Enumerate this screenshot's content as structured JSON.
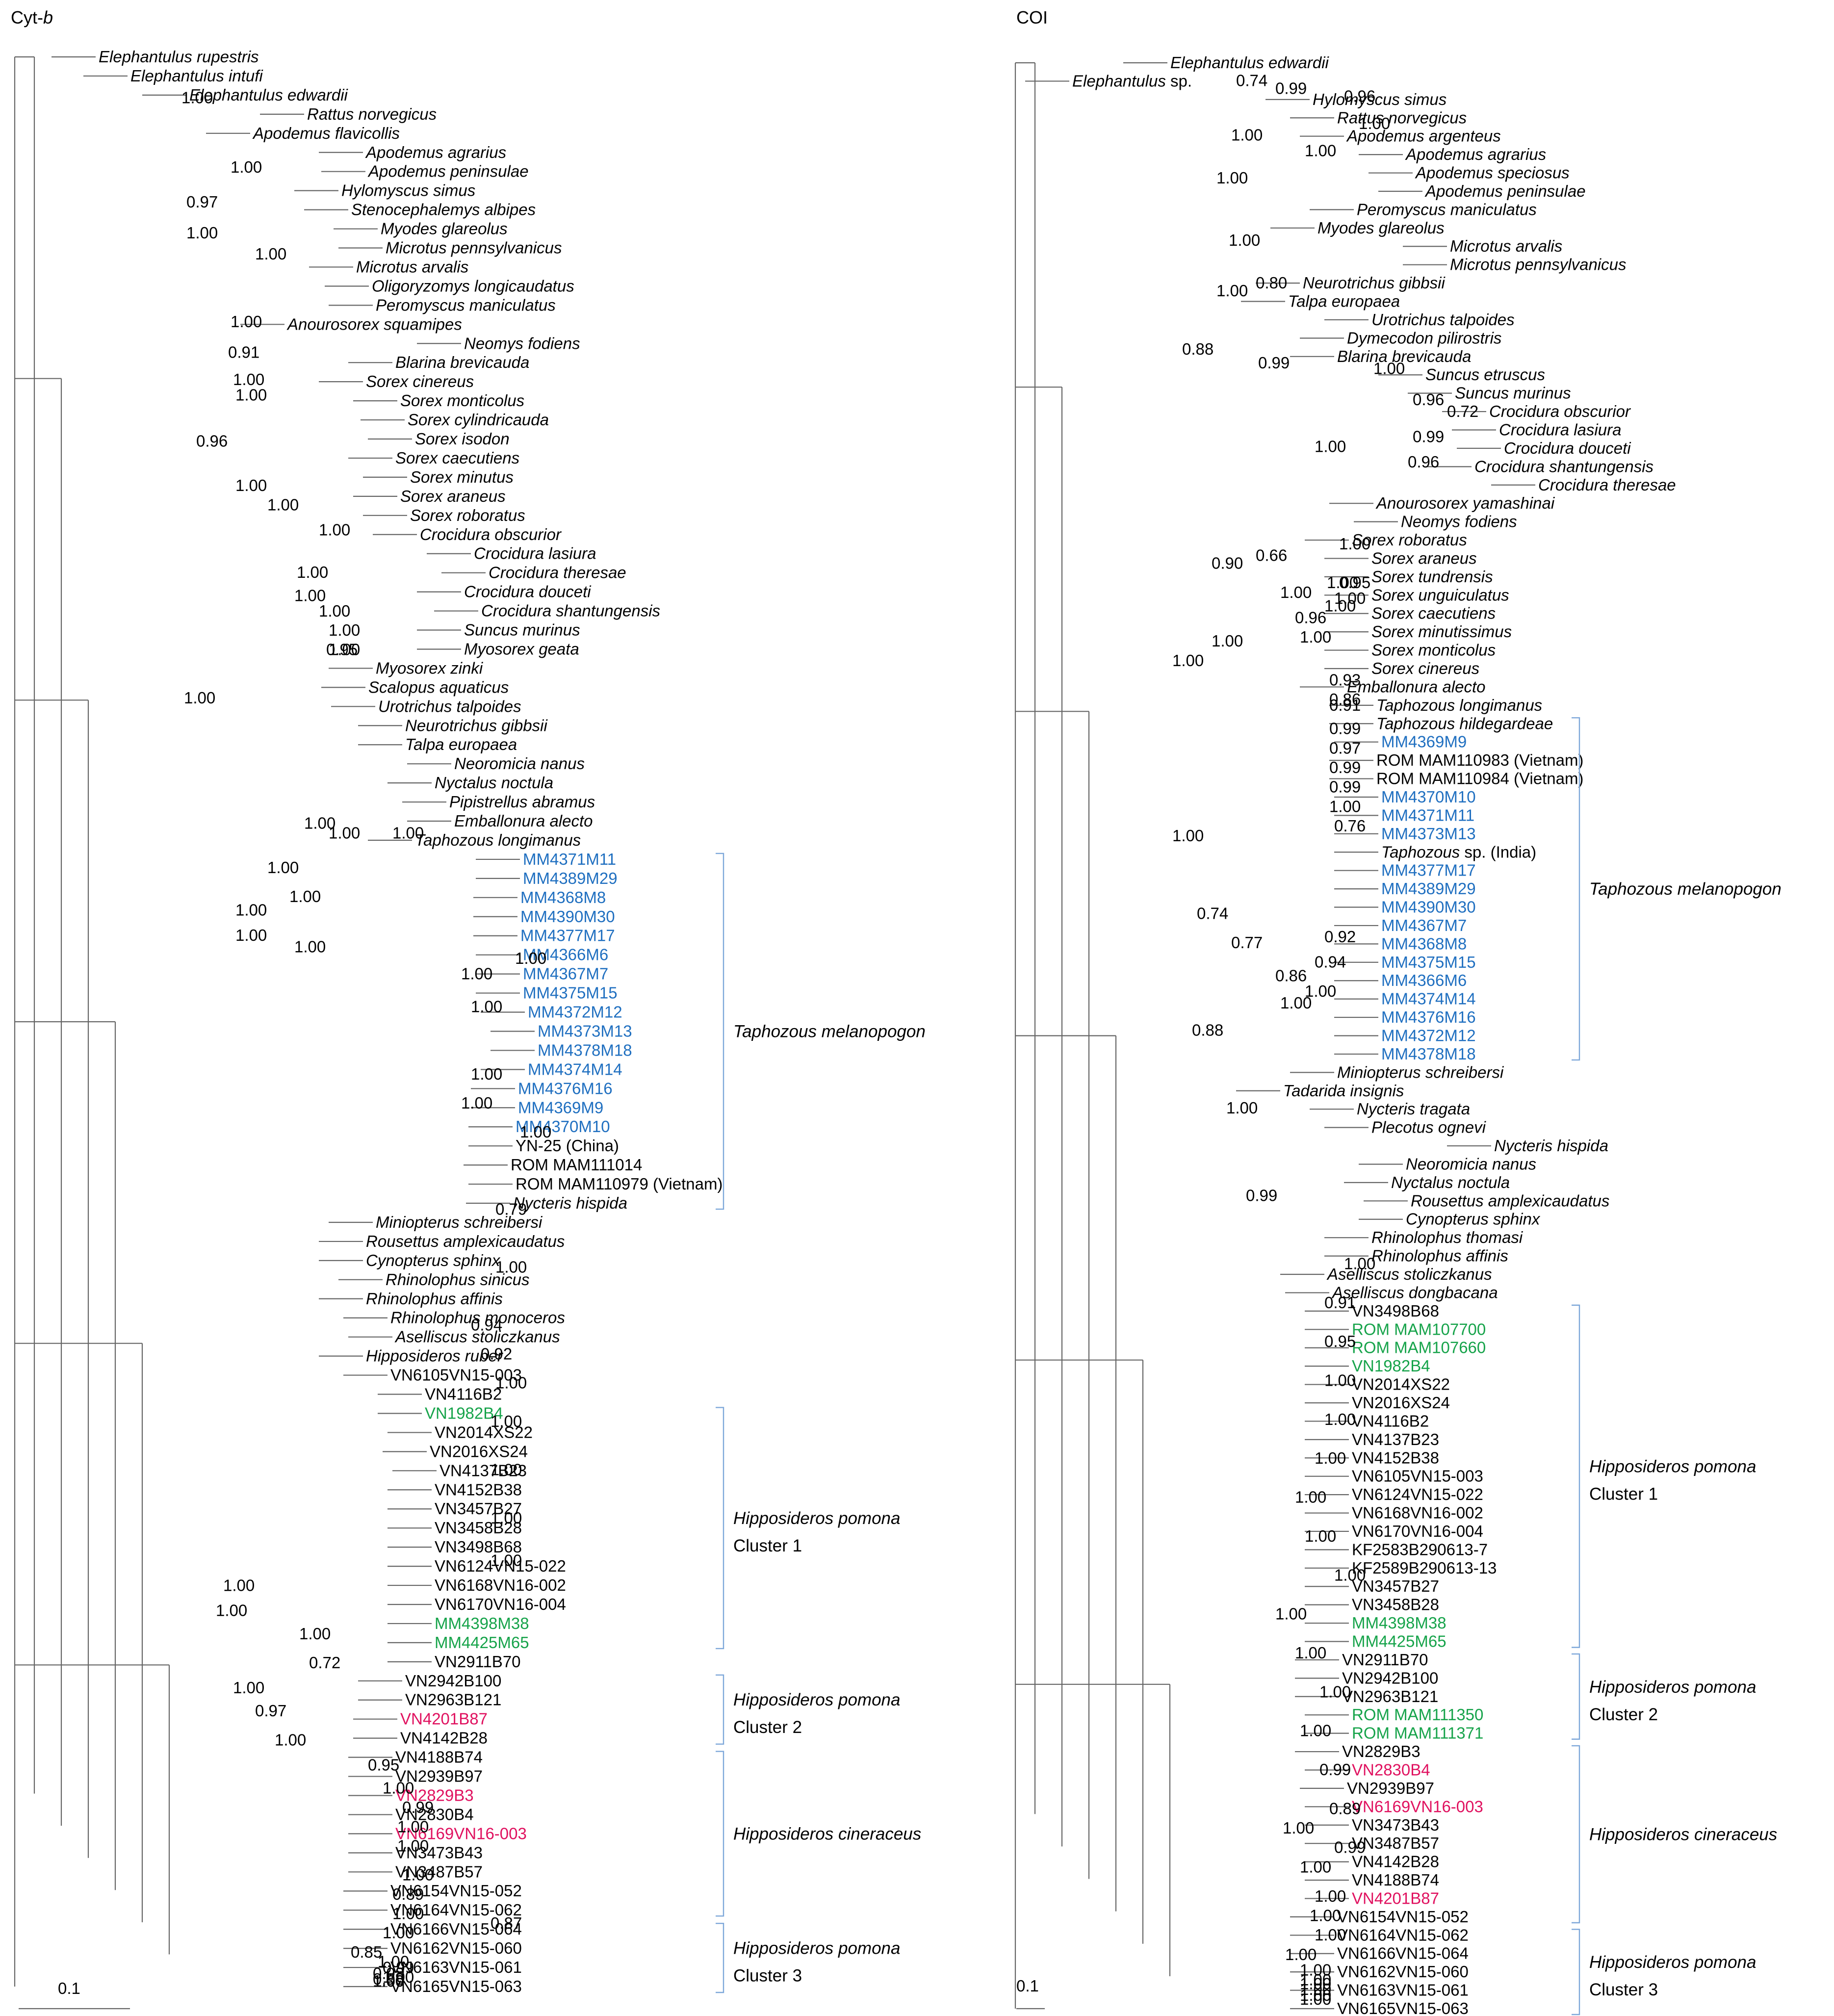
{
  "colors": {
    "text": "#000000",
    "blue": "#1f6fc0",
    "green": "#16a34a",
    "pink": "#e0115f",
    "branch": "#666666",
    "bracket": "#7da7d9"
  },
  "panels": [
    {
      "title_main": "Cyt-",
      "title_italic": "b",
      "scale_label": "0.1",
      "taxa": [
        {
          "label": "Elephantulus rupestris",
          "italic": true
        },
        {
          "label": "Elephantulus intufi",
          "italic": true
        },
        {
          "label": "Elephantulus edwardii",
          "italic": true
        },
        {
          "label": "Rattus norvegicus",
          "italic": true
        },
        {
          "label": "Apodemus flavicollis",
          "italic": true
        },
        {
          "label": "Apodemus agrarius",
          "italic": true
        },
        {
          "label": "Apodemus peninsulae",
          "italic": true
        },
        {
          "label": "Hylomyscus simus",
          "italic": true
        },
        {
          "label": "Stenocephalemys albipes",
          "italic": true
        },
        {
          "label": "Myodes glareolus",
          "italic": true
        },
        {
          "label": "Microtus pennsylvanicus",
          "italic": true
        },
        {
          "label": "Microtus arvalis",
          "italic": true
        },
        {
          "label": "Oligoryzomys longicaudatus",
          "italic": true
        },
        {
          "label": "Peromyscus maniculatus",
          "italic": true
        },
        {
          "label": "Anourosorex squamipes",
          "italic": true
        },
        {
          "label": "Neomys fodiens",
          "italic": true
        },
        {
          "label": "Blarina brevicauda",
          "italic": true
        },
        {
          "label": "Sorex cinereus",
          "italic": true
        },
        {
          "label": "Sorex monticolus",
          "italic": true
        },
        {
          "label": "Sorex cylindricauda",
          "italic": true
        },
        {
          "label": "Sorex isodon",
          "italic": true
        },
        {
          "label": "Sorex caecutiens",
          "italic": true
        },
        {
          "label": "Sorex minutus",
          "italic": true
        },
        {
          "label": "Sorex araneus",
          "italic": true
        },
        {
          "label": "Sorex roboratus",
          "italic": true
        },
        {
          "label": "Crocidura obscurior",
          "italic": true
        },
        {
          "label": "Crocidura lasiura",
          "italic": true
        },
        {
          "label": "Crocidura theresae",
          "italic": true
        },
        {
          "label": "Crocidura douceti",
          "italic": true
        },
        {
          "label": "Crocidura shantungensis",
          "italic": true
        },
        {
          "label": "Suncus murinus",
          "italic": true
        },
        {
          "label": "Myosorex geata",
          "italic": true
        },
        {
          "label": "Myosorex zinki",
          "italic": true
        },
        {
          "label": "Scalopus aquaticus",
          "italic": true
        },
        {
          "label": "Urotrichus talpoides",
          "italic": true
        },
        {
          "label": "Neurotrichus gibbsii",
          "italic": true
        },
        {
          "label": "Talpa europaea",
          "italic": true
        },
        {
          "label": "Neoromicia nanus",
          "italic": true
        },
        {
          "label": "Nyctalus noctula",
          "italic": true
        },
        {
          "label": "Pipistrellus abramus",
          "italic": true
        },
        {
          "label": "Emballonura alecto",
          "italic": true
        },
        {
          "label": "Taphozous longimanus",
          "italic": true
        },
        {
          "label": "MM4371M11",
          "color": "blue"
        },
        {
          "label": "MM4389M29",
          "color": "blue"
        },
        {
          "label": "MM4368M8",
          "color": "blue"
        },
        {
          "label": "MM4390M30",
          "color": "blue"
        },
        {
          "label": "MM4377M17",
          "color": "blue"
        },
        {
          "label": "MM4366M6",
          "color": "blue"
        },
        {
          "label": "MM4367M7",
          "color": "blue"
        },
        {
          "label": "MM4375M15",
          "color": "blue"
        },
        {
          "label": "MM4372M12",
          "color": "blue"
        },
        {
          "label": "MM4373M13",
          "color": "blue"
        },
        {
          "label": "MM4378M18",
          "color": "blue"
        },
        {
          "label": "MM4374M14",
          "color": "blue"
        },
        {
          "label": "MM4376M16",
          "color": "blue"
        },
        {
          "label": "MM4369M9",
          "color": "blue"
        },
        {
          "label": "MM4370M10",
          "color": "blue"
        },
        {
          "label": "YN-25 (China)"
        },
        {
          "label": "ROM MAM111014"
        },
        {
          "label": "ROM MAM110979 (Vietnam)"
        },
        {
          "label": "Nycteris hispida",
          "italic": true
        },
        {
          "label": "Miniopterus schreibersi",
          "italic": true
        },
        {
          "label": "Rousettus amplexicaudatus",
          "italic": true
        },
        {
          "label": "Cynopterus sphinx",
          "italic": true
        },
        {
          "label": "Rhinolophus sinicus",
          "italic": true
        },
        {
          "label": "Rhinolophus affinis",
          "italic": true
        },
        {
          "label": "Rhinolophus monoceros",
          "italic": true
        },
        {
          "label": "Aselliscus stoliczkanus",
          "italic": true
        },
        {
          "label": "Hipposideros ruber",
          "italic": true
        },
        {
          "label": "VN6105VN15-003"
        },
        {
          "label": "VN4116B2"
        },
        {
          "label": "VN1982B4",
          "color": "green"
        },
        {
          "label": "VN2014XS22"
        },
        {
          "label": "VN2016XS24"
        },
        {
          "label": "VN4137B23"
        },
        {
          "label": "VN4152B38"
        },
        {
          "label": "VN3457B27"
        },
        {
          "label": "VN3458B28"
        },
        {
          "label": "VN3498B68"
        },
        {
          "label": "VN6124VN15-022"
        },
        {
          "label": "VN6168VN16-002"
        },
        {
          "label": "VN6170VN16-004"
        },
        {
          "label": "MM4398M38",
          "color": "green"
        },
        {
          "label": "MM4425M65",
          "color": "green"
        },
        {
          "label": "VN2911B70"
        },
        {
          "label": "VN2942B100"
        },
        {
          "label": "VN2963B121"
        },
        {
          "label": "VN4201B87",
          "color": "pink"
        },
        {
          "label": "VN4142B28"
        },
        {
          "label": "VN4188B74"
        },
        {
          "label": "VN2939B97"
        },
        {
          "label": "VN2829B3",
          "color": "pink"
        },
        {
          "label": "VN2830B4"
        },
        {
          "label": "VN6169VN16-003",
          "color": "pink"
        },
        {
          "label": "VN3473B43"
        },
        {
          "label": "VN3487B57"
        },
        {
          "label": "VN6154VN15-052"
        },
        {
          "label": "VN6164VN15-062"
        },
        {
          "label": "VN6166VN15-064"
        },
        {
          "label": "VN6162VN15-060"
        },
        {
          "label": "VN6163VN15-061"
        },
        {
          "label": "VN6165VN15-063"
        }
      ],
      "supports": [
        "1.00",
        "1.00",
        "0.97",
        "1.00",
        "1.00",
        "1.00",
        "1.00",
        "0.91",
        "1.00",
        "0.96",
        "1.00",
        "1.00",
        "1.00",
        "1.00",
        "1.00",
        "1.00",
        "1.00",
        "1.00",
        "1.00",
        "0.95",
        "1.00",
        "1.00",
        "1.00",
        "1.00",
        "1.00",
        "1.00",
        "1.00",
        "1.00",
        "1.00",
        "1.00",
        "1.00",
        "1.00",
        "1.00",
        "1.00",
        "0.79",
        "1.00",
        "0.94",
        "0.92",
        "1.00",
        "1.00",
        "1.00",
        "1.00",
        "1.00",
        "1.00",
        "1.00",
        "1.00",
        "0.72",
        "1.00",
        "0.97",
        "1.00",
        "0.95",
        "1.00",
        "0.99",
        "1.00",
        "1.00",
        "1.00",
        "0.89",
        "1.00",
        "1.00",
        "0.85",
        "1.00",
        "0.99",
        "0.98",
        "1.00",
        "0.98",
        "1.00",
        "1.00",
        "1.00",
        "1.00",
        "1.00",
        "0.87"
      ],
      "groups": [
        {
          "name": "Taphozous melanopogon",
          "cluster": ""
        },
        {
          "name": "Hipposideros pomona",
          "cluster": "Cluster 1"
        },
        {
          "name": "Hipposideros pomona",
          "cluster": "Cluster 2"
        },
        {
          "name": "Hipposideros cineraceus",
          "cluster": ""
        },
        {
          "name": "Hipposideros pomona",
          "cluster": "Cluster 3"
        }
      ]
    },
    {
      "title_main": "COI",
      "title_italic": "",
      "scale_label": "0.1",
      "taxa": [
        {
          "label": "Elephantulus edwardii",
          "italic": true
        },
        {
          "label": "Elephantulus",
          "italic": true,
          "suffix": " sp."
        },
        {
          "label": "Hylomyscus simus",
          "italic": true
        },
        {
          "label": "Rattus norvegicus",
          "italic": true
        },
        {
          "label": "Apodemus argenteus",
          "italic": true
        },
        {
          "label": "Apodemus agrarius",
          "italic": true
        },
        {
          "label": "Apodemus speciosus",
          "italic": true
        },
        {
          "label": "Apodemus peninsulae",
          "italic": true
        },
        {
          "label": "Peromyscus maniculatus",
          "italic": true
        },
        {
          "label": "Myodes glareolus",
          "italic": true
        },
        {
          "label": "Microtus arvalis",
          "italic": true
        },
        {
          "label": "Microtus pennsylvanicus",
          "italic": true
        },
        {
          "label": "Neurotrichus gibbsii",
          "italic": true
        },
        {
          "label": "Talpa europaea",
          "italic": true
        },
        {
          "label": "Urotrichus talpoides",
          "italic": true
        },
        {
          "label": "Dymecodon pilirostris",
          "italic": true
        },
        {
          "label": "Blarina brevicauda",
          "italic": true
        },
        {
          "label": "Suncus etruscus",
          "italic": true
        },
        {
          "label": "Suncus murinus",
          "italic": true
        },
        {
          "label": "Crocidura obscurior",
          "italic": true
        },
        {
          "label": "Crocidura lasiura",
          "italic": true
        },
        {
          "label": "Crocidura douceti",
          "italic": true
        },
        {
          "label": "Crocidura shantungensis",
          "italic": true
        },
        {
          "label": "Crocidura theresae",
          "italic": true
        },
        {
          "label": "Anourosorex yamashinai",
          "italic": true
        },
        {
          "label": "Neomys fodiens",
          "italic": true
        },
        {
          "label": "Sorex roboratus",
          "italic": true
        },
        {
          "label": "Sorex araneus",
          "italic": true
        },
        {
          "label": "Sorex tundrensis",
          "italic": true
        },
        {
          "label": "Sorex unguiculatus",
          "italic": true
        },
        {
          "label": "Sorex caecutiens",
          "italic": true
        },
        {
          "label": "Sorex minutissimus",
          "italic": true
        },
        {
          "label": "Sorex monticolus",
          "italic": true
        },
        {
          "label": "Sorex cinereus",
          "italic": true
        },
        {
          "label": "Emballonura alecto",
          "italic": true
        },
        {
          "label": "Taphozous longimanus",
          "italic": true
        },
        {
          "label": "Taphozous hildegardeae",
          "italic": true
        },
        {
          "label": "MM4369M9",
          "color": "blue"
        },
        {
          "label": "ROM MAM110983 (Vietnam)"
        },
        {
          "label": "ROM MAM110984 (Vietnam)"
        },
        {
          "label": "MM4370M10",
          "color": "blue"
        },
        {
          "label": "MM4371M11",
          "color": "blue"
        },
        {
          "label": "MM4373M13",
          "color": "blue"
        },
        {
          "label": "Taphozous",
          "italic": true,
          "suffix": " sp. (India)"
        },
        {
          "label": "MM4377M17",
          "color": "blue"
        },
        {
          "label": "MM4389M29",
          "color": "blue"
        },
        {
          "label": "MM4390M30",
          "color": "blue"
        },
        {
          "label": "MM4367M7",
          "color": "blue"
        },
        {
          "label": "MM4368M8",
          "color": "blue"
        },
        {
          "label": "MM4375M15",
          "color": "blue"
        },
        {
          "label": "MM4366M6",
          "color": "blue"
        },
        {
          "label": "MM4374M14",
          "color": "blue"
        },
        {
          "label": "MM4376M16",
          "color": "blue"
        },
        {
          "label": "MM4372M12",
          "color": "blue"
        },
        {
          "label": "MM4378M18",
          "color": "blue"
        },
        {
          "label": "Miniopterus schreibersi",
          "italic": true
        },
        {
          "label": "Tadarida insignis",
          "italic": true
        },
        {
          "label": "Nycteris tragata",
          "italic": true
        },
        {
          "label": "Plecotus ognevi",
          "italic": true
        },
        {
          "label": "Nycteris hispida",
          "italic": true
        },
        {
          "label": "Neoromicia nanus",
          "italic": true
        },
        {
          "label": "Nyctalus noctula",
          "italic": true
        },
        {
          "label": "Rousettus amplexicaudatus",
          "italic": true
        },
        {
          "label": "Cynopterus sphinx",
          "italic": true
        },
        {
          "label": "Rhinolophus thomasi",
          "italic": true
        },
        {
          "label": "Rhinolophus affinis",
          "italic": true
        },
        {
          "label": "Aselliscus stoliczkanus",
          "italic": true
        },
        {
          "label": "Aselliscus dongbacana",
          "italic": true
        },
        {
          "label": "VN3498B68"
        },
        {
          "label": "ROM MAM107700",
          "color": "green"
        },
        {
          "label": "ROM MAM107660",
          "color": "green"
        },
        {
          "label": "VN1982B4",
          "color": "green"
        },
        {
          "label": "VN2014XS22"
        },
        {
          "label": "VN2016XS24"
        },
        {
          "label": "VN4116B2"
        },
        {
          "label": "VN4137B23"
        },
        {
          "label": "VN4152B38"
        },
        {
          "label": "VN6105VN15-003"
        },
        {
          "label": "VN6124VN15-022"
        },
        {
          "label": "VN6168VN16-002"
        },
        {
          "label": "VN6170VN16-004"
        },
        {
          "label": "KF2583B290613-7"
        },
        {
          "label": "KF2589B290613-13"
        },
        {
          "label": "VN3457B27"
        },
        {
          "label": "VN3458B28"
        },
        {
          "label": "MM4398M38",
          "color": "green"
        },
        {
          "label": "MM4425M65",
          "color": "green"
        },
        {
          "label": "VN2911B70"
        },
        {
          "label": "VN2942B100"
        },
        {
          "label": "VN2963B121"
        },
        {
          "label": "ROM MAM111350",
          "color": "green"
        },
        {
          "label": "ROM MAM111371",
          "color": "green"
        },
        {
          "label": "VN2829B3"
        },
        {
          "label": "VN2830B4",
          "color": "pink"
        },
        {
          "label": "VN2939B97"
        },
        {
          "label": "VN6169VN16-003",
          "color": "pink"
        },
        {
          "label": "VN3473B43"
        },
        {
          "label": "VN3487B57"
        },
        {
          "label": "VN4142B28"
        },
        {
          "label": "VN4188B74"
        },
        {
          "label": "VN4201B87",
          "color": "pink"
        },
        {
          "label": "VN6154VN15-052"
        },
        {
          "label": "VN6164VN15-062"
        },
        {
          "label": "VN6166VN15-064"
        },
        {
          "label": "VN6162VN15-060"
        },
        {
          "label": "VN6163VN15-061"
        },
        {
          "label": "VN6165VN15-063"
        }
      ],
      "supports": [
        "0.74",
        "0.99",
        "0.96",
        "1.00",
        "1.00",
        "1.00",
        "1.00",
        "1.00",
        "0.80",
        "1.00",
        "0.88",
        "0.99",
        "1.00",
        "0.96",
        "0.72",
        "0.99",
        "0.96",
        "1.00",
        "0.66",
        "1.00",
        "1.00",
        "0.95",
        "1.00",
        "0.96",
        "1.00",
        "1.00",
        "0.90",
        "1.00",
        "1.00",
        "1.00",
        "0.93",
        "0.86",
        "0.91",
        "0.99",
        "0.97",
        "0.99",
        "0.99",
        "1.00",
        "0.76",
        "1.00",
        "0.74",
        "0.92",
        "0.77",
        "0.94",
        "0.86",
        "1.00",
        "1.00",
        "0.88",
        "1.00",
        "0.99",
        "1.00",
        "0.91",
        "0.95",
        "1.00",
        "1.00",
        "1.00",
        "1.00",
        "1.00",
        "1.00",
        "1.00",
        "1.00",
        "1.00",
        "1.00",
        "0.99",
        "0.89",
        "1.00",
        "0.99",
        "1.00",
        "1.00",
        "1.00",
        "1.00",
        "1.00",
        "1.00",
        "1.00",
        "1.00",
        "1.00",
        "1.00",
        "1.00"
      ],
      "groups": [
        {
          "name": "Taphozous melanopogon",
          "cluster": ""
        },
        {
          "name": "Hipposideros pomona",
          "cluster": "Cluster 1"
        },
        {
          "name": "Hipposideros pomona",
          "cluster": "Cluster 2"
        },
        {
          "name": "Hipposideros cineraceus",
          "cluster": ""
        },
        {
          "name": "Hipposideros pomona",
          "cluster": "Cluster 3"
        }
      ]
    }
  ]
}
